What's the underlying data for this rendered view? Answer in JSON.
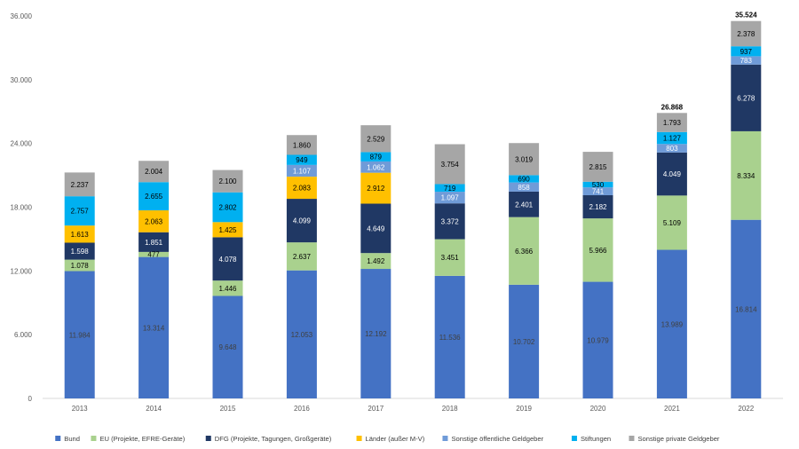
{
  "chart_data": {
    "type": "stacked-bar",
    "title": "",
    "xlabel": "",
    "ylabel": "",
    "ylim": [
      0,
      36000
    ],
    "yticks": [
      0,
      6000,
      12000,
      18000,
      24000,
      30000,
      36000
    ],
    "ytick_labels": [
      "0",
      "6.000",
      "12.000",
      "18.000",
      "24.000",
      "30.000",
      "36.000"
    ],
    "categories": [
      "2013",
      "2014",
      "2015",
      "2016",
      "2017",
      "2018",
      "2019",
      "2020",
      "2021",
      "2022"
    ],
    "series": [
      {
        "name": "Bund",
        "color": "#4472C4",
        "label_color": "#404040",
        "values": [
          11984,
          13314,
          9648,
          12053,
          12192,
          11536,
          10702,
          10979,
          13989,
          16814
        ],
        "labels": [
          "11.984",
          "13.314",
          "9.648",
          "12.053",
          "12.192",
          "11.536",
          "10.702",
          "10.979",
          "13.989",
          "16.814"
        ]
      },
      {
        "name": "EU (Projekte, EFRE-Geräte)",
        "color": "#A9D18E",
        "label_color": "#000000",
        "values": [
          1078,
          477,
          1446,
          2637,
          1492,
          3451,
          6366,
          5966,
          5109,
          8334
        ],
        "labels": [
          "1.078",
          "477",
          "1.446",
          "2.637",
          "1.492",
          "3.451",
          "6.366",
          "5.966",
          "5.109",
          "8.334"
        ]
      },
      {
        "name": "DFG (Projekte, Tagungen, Großgeräte)",
        "color": "#203864",
        "label_color": "#ffffff",
        "values": [
          1598,
          1851,
          4078,
          4099,
          4649,
          3372,
          2401,
          2182,
          4049,
          6278
        ],
        "labels": [
          "1.598",
          "1.851",
          "4.078",
          "4.099",
          "4.649",
          "3.372",
          "2.401",
          "2.182",
          "4.049",
          "6.278"
        ]
      },
      {
        "name": "Länder (außer M-V)",
        "color": "#FFC000",
        "label_color": "#000000",
        "values": [
          1613,
          2063,
          1425,
          2083,
          2912,
          0,
          0,
          0,
          0,
          0
        ],
        "labels": [
          "1.613",
          "2.063",
          "1.425",
          "2.083",
          "2.912",
          "",
          "",
          "",
          "",
          ""
        ]
      },
      {
        "name": "Sonstige öffentliche Geldgeber",
        "color": "#6F9BD8",
        "label_color": "#ffffff",
        "values": [
          0,
          0,
          0,
          1107,
          1062,
          1097,
          858,
          741,
          803,
          783
        ],
        "labels": [
          "",
          "",
          "",
          "1.107",
          "1.062",
          "1.097",
          "858",
          "741",
          "803",
          "783"
        ]
      },
      {
        "name": "Stiftungen",
        "color": "#00B0F0",
        "label_color": "#000000",
        "values": [
          2757,
          2655,
          2802,
          949,
          879,
          719,
          690,
          530,
          1127,
          937
        ],
        "labels": [
          "2.757",
          "2.655",
          "2.802",
          "949",
          "879",
          "719",
          "690",
          "530",
          "1.127",
          "937"
        ]
      },
      {
        "name": "Sonstige private Geldgeber",
        "color": "#A6A6A6",
        "label_color": "#000000",
        "values": [
          2237,
          2004,
          2100,
          1860,
          2529,
          3754,
          3019,
          2815,
          1793,
          2378
        ],
        "labels": [
          "2.237",
          "2.004",
          "2.100",
          "1.860",
          "2.529",
          "3.754",
          "3.019",
          "2.815",
          "1.793",
          "2.378"
        ]
      }
    ],
    "totals": [
      {
        "category": "2021",
        "label": "26.868"
      },
      {
        "category": "2022",
        "label": "35.524"
      }
    ],
    "grid": false,
    "legend_position": "bottom"
  }
}
